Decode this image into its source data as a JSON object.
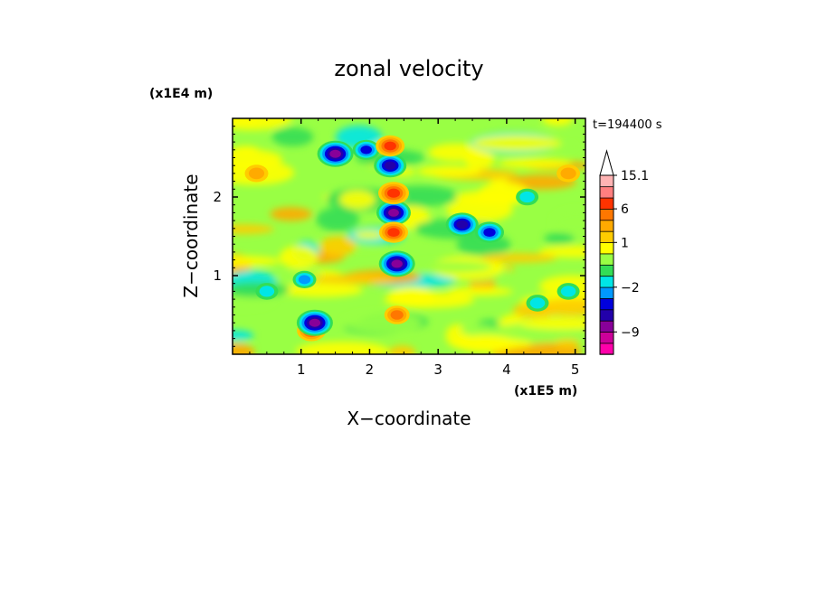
{
  "chart_data": {
    "type": "heatmap",
    "title": "zonal velocity",
    "xlabel": "X−coordinate",
    "ylabel": "Z−coordinate",
    "x_unit": "(x1E5 m)",
    "y_unit": "(x1E4 m)",
    "time_label": "t=194400 s",
    "xlim": [
      0,
      5.15
    ],
    "ylim": [
      0,
      3.0
    ],
    "x_ticks": [
      1,
      2,
      3,
      4,
      5
    ],
    "y_ticks": [
      1,
      2
    ],
    "colorbar": {
      "levels": [
        -13,
        -11,
        -9,
        -7,
        -5,
        -3,
        -2,
        -1,
        0,
        0.5,
        1,
        2,
        4,
        6,
        8,
        12,
        15.1
      ],
      "labels": [
        "15.1",
        "6",
        "1",
        "−2",
        "−9"
      ],
      "label_values": [
        15.1,
        6,
        1,
        -2,
        -9
      ],
      "colors": [
        "#ff00aa",
        "#cc0099",
        "#880099",
        "#2200aa",
        "#0000dd",
        "#0099ff",
        "#00e6e6",
        "#33dd55",
        "#99ff44",
        "#ffff00",
        "#ffcc00",
        "#ffaa00",
        "#ff7700",
        "#ff3300",
        "#ff7f7f",
        "#ffb3b3",
        "#ffffff"
      ],
      "extend": "max"
    },
    "features": [
      {
        "x": 2.4,
        "z": 1.15,
        "value": -10
      },
      {
        "x": 2.35,
        "z": 1.8,
        "value": -9
      },
      {
        "x": 1.5,
        "z": 2.55,
        "value": -10
      },
      {
        "x": 1.95,
        "z": 2.6,
        "value": -5
      },
      {
        "x": 2.3,
        "z": 2.4,
        "value": -8
      },
      {
        "x": 3.35,
        "z": 1.65,
        "value": -8
      },
      {
        "x": 3.75,
        "z": 1.55,
        "value": -6
      },
      {
        "x": 2.35,
        "z": 2.05,
        "value": 7
      },
      {
        "x": 2.35,
        "z": 1.55,
        "value": 6
      },
      {
        "x": 2.3,
        "z": 2.65,
        "value": 6
      },
      {
        "x": 2.4,
        "z": 0.5,
        "value": 4
      },
      {
        "x": 0.35,
        "z": 2.3,
        "value": 3
      },
      {
        "x": 4.9,
        "z": 2.3,
        "value": 3
      },
      {
        "x": 0.5,
        "z": 0.8,
        "value": -2.5
      },
      {
        "x": 1.05,
        "z": 0.95,
        "value": -3
      },
      {
        "x": 4.45,
        "z": 0.65,
        "value": -2.5
      },
      {
        "x": 4.9,
        "z": 0.8,
        "value": -2.5
      },
      {
        "x": 4.3,
        "z": 2.0,
        "value": -2.5
      },
      {
        "x": 1.15,
        "z": 0.3,
        "value": 6
      },
      {
        "x": 1.2,
        "z": 0.4,
        "value": -10
      }
    ]
  }
}
